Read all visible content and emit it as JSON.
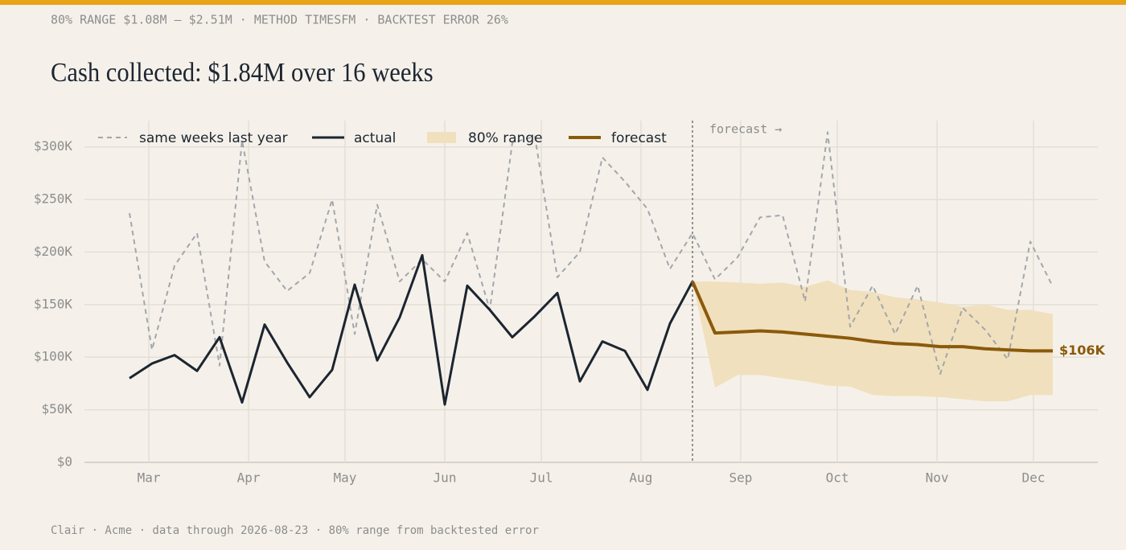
{
  "chart_data": {
    "type": "line",
    "subtitle": "80% RANGE $1.08M – $2.51M · METHOD TIMESFM · BACKTEST ERROR 26%",
    "title": "Cash collected: $1.84M over 16 weeks",
    "footer": "Clair · Acme · data through 2026-08-23 · 80% range from backtested error",
    "forecast_label": "forecast →",
    "forecast_start": 25,
    "xlim": [
      -2,
      43
    ],
    "xticks": [
      {
        "value": 0.86,
        "label": "Mar"
      },
      {
        "value": 5.29,
        "label": "Apr"
      },
      {
        "value": 9.57,
        "label": "May"
      },
      {
        "value": 14,
        "label": "Jun"
      },
      {
        "value": 18.29,
        "label": "Jul"
      },
      {
        "value": 22.71,
        "label": "Aug"
      },
      {
        "value": 27.14,
        "label": "Sep"
      },
      {
        "value": 31.43,
        "label": "Oct"
      },
      {
        "value": 35.86,
        "label": "Nov"
      },
      {
        "value": 40.14,
        "label": "Dec"
      }
    ],
    "ylim": [
      0,
      325000
    ],
    "yticks": [
      {
        "value": 0,
        "label": "$0"
      },
      {
        "value": 50000,
        "label": "$50K"
      },
      {
        "value": 100000,
        "label": "$100K"
      },
      {
        "value": 150000,
        "label": "$150K"
      },
      {
        "value": 200000,
        "label": "$200K"
      },
      {
        "value": 250000,
        "label": "$250K"
      },
      {
        "value": 300000,
        "label": "$300K"
      }
    ],
    "grid": true,
    "range": {
      "name": "80% range",
      "color": "#f1e0bd",
      "x": [
        25,
        26,
        27,
        28,
        29,
        30,
        31,
        32,
        33,
        34,
        35,
        36,
        37,
        38,
        39,
        40,
        41
      ],
      "upper": [
        172000,
        172000,
        171000,
        170000,
        171000,
        167000,
        173000,
        164000,
        162000,
        157000,
        155000,
        152000,
        148000,
        150000,
        145000,
        145000,
        141000
      ],
      "lower": [
        172000,
        71000,
        83000,
        83000,
        80000,
        77000,
        73000,
        72000,
        64000,
        63000,
        63000,
        62000,
        60000,
        58000,
        58000,
        64000,
        64000
      ]
    },
    "series": [
      {
        "name": "same weeks last year",
        "color": "#a3a6ab",
        "dash": true,
        "x": [
          0,
          1,
          2,
          3,
          4,
          5,
          6,
          7,
          8,
          9,
          10,
          11,
          12,
          13,
          14,
          15,
          16,
          17,
          18,
          19,
          20,
          21,
          22,
          23,
          24,
          25,
          26,
          27,
          28,
          29,
          30,
          31,
          32,
          33,
          34,
          35,
          36,
          37,
          38,
          39,
          40,
          41
        ],
        "values": [
          237000,
          107000,
          187000,
          218000,
          92000,
          306000,
          191000,
          163000,
          180000,
          250000,
          122000,
          245000,
          172000,
          193000,
          172000,
          218000,
          145000,
          304000,
          310000,
          176000,
          200000,
          290000,
          267000,
          241000,
          184000,
          218000,
          174000,
          195000,
          233000,
          235000,
          153000,
          314000,
          129000,
          168000,
          122000,
          168000,
          84000,
          147000,
          126000,
          98000,
          210000,
          167000
        ]
      },
      {
        "name": "actual",
        "color": "#1c2530",
        "x": [
          0,
          1,
          2,
          3,
          4,
          5,
          6,
          7,
          8,
          9,
          10,
          11,
          12,
          13,
          14,
          15,
          16,
          17,
          18,
          19,
          20,
          21,
          22,
          23,
          24,
          25
        ],
        "values": [
          80000,
          94000,
          102000,
          87000,
          119000,
          57000,
          131000,
          95000,
          62000,
          88000,
          169000,
          97000,
          138000,
          197000,
          55000,
          168000,
          145000,
          119000,
          139000,
          161000,
          77000,
          115000,
          106000,
          69000,
          132000,
          172000
        ]
      },
      {
        "name": "forecast",
        "color": "#8a5a0b",
        "x": [
          25,
          26,
          27,
          28,
          29,
          30,
          31,
          32,
          33,
          34,
          35,
          36,
          37,
          38,
          39,
          40,
          41
        ],
        "values": [
          172000,
          123000,
          124000,
          125000,
          124000,
          122000,
          120000,
          118000,
          115000,
          113000,
          112000,
          110000,
          110000,
          108000,
          107000,
          106000,
          106000
        ],
        "value_labels": [
          null,
          null,
          null,
          null,
          null,
          null,
          null,
          null,
          null,
          null,
          null,
          null,
          null,
          null,
          null,
          null,
          "$106K"
        ]
      }
    ]
  }
}
